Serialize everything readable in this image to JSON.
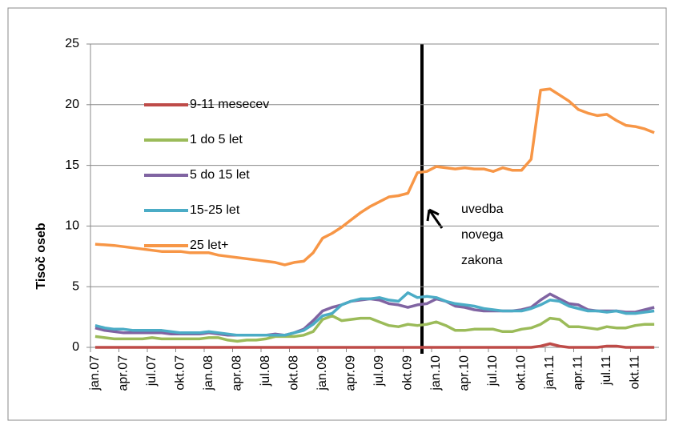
{
  "chart_data": {
    "type": "line",
    "y_label": "Tisoč oseb",
    "categories": [
      "jan.07",
      null,
      null,
      "apr.07",
      null,
      null,
      "jul.07",
      null,
      null,
      "okt.07",
      null,
      null,
      "jan.08",
      null,
      null,
      "apr.08",
      null,
      null,
      "jul.08",
      null,
      null,
      "okt.08",
      null,
      null,
      "jan.09",
      null,
      null,
      "apr.09",
      null,
      null,
      "jul.09",
      null,
      null,
      "okt.09",
      null,
      null,
      "jan.10",
      null,
      null,
      "apr.10",
      null,
      null,
      "jul.10",
      null,
      null,
      "okt.10",
      null,
      null,
      "jan.11",
      null,
      null,
      "apr.11",
      null,
      null,
      "jul.11",
      null,
      null,
      "okt.11",
      null,
      null
    ],
    "series": [
      {
        "name": "9-11 mesecev",
        "color": "#be4b48",
        "values": [
          0,
          0,
          0,
          0,
          0,
          0,
          0,
          0,
          0,
          0,
          0,
          0,
          0,
          0,
          0,
          0,
          0,
          0,
          0,
          0,
          0,
          0,
          0,
          0,
          0,
          0,
          0,
          0,
          0,
          0,
          0,
          0,
          0,
          0,
          0,
          0,
          0,
          0,
          0,
          0,
          0,
          0,
          0,
          0,
          0,
          0,
          0,
          0.1,
          0.3,
          0.1,
          0,
          0,
          0,
          0,
          0.1,
          0.1,
          0,
          0,
          0,
          0
        ]
      },
      {
        "name": "1 do 5 let",
        "color": "#9bbb59",
        "values": [
          0.9,
          0.8,
          0.7,
          0.7,
          0.7,
          0.7,
          0.8,
          0.7,
          0.7,
          0.7,
          0.7,
          0.7,
          0.8,
          0.8,
          0.6,
          0.5,
          0.6,
          0.6,
          0.7,
          0.9,
          0.9,
          0.9,
          1.0,
          1.3,
          2.3,
          2.6,
          2.2,
          2.3,
          2.4,
          2.4,
          2.1,
          1.8,
          1.7,
          1.9,
          1.8,
          1.9,
          2.1,
          1.8,
          1.4,
          1.4,
          1.5,
          1.5,
          1.5,
          1.3,
          1.3,
          1.5,
          1.6,
          1.9,
          2.4,
          2.3,
          1.7,
          1.7,
          1.6,
          1.5,
          1.7,
          1.6,
          1.6,
          1.8,
          1.9,
          1.9
        ]
      },
      {
        "name": "5 do 15 let",
        "color": "#8064a2",
        "values": [
          1.6,
          1.4,
          1.3,
          1.2,
          1.2,
          1.2,
          1.2,
          1.2,
          1.1,
          1.1,
          1.1,
          1.1,
          1.2,
          1.1,
          1.0,
          1.0,
          1.0,
          1.0,
          1.0,
          1.1,
          1.0,
          1.2,
          1.5,
          2.2,
          3.0,
          3.3,
          3.5,
          3.8,
          3.9,
          4.0,
          3.9,
          3.6,
          3.5,
          3.3,
          3.5,
          3.6,
          4.0,
          3.8,
          3.4,
          3.3,
          3.1,
          3.0,
          3.0,
          3.0,
          3.0,
          3.1,
          3.3,
          3.9,
          4.4,
          4.0,
          3.6,
          3.5,
          3.1,
          3.0,
          3.0,
          3.0,
          2.9,
          2.9,
          3.1,
          3.3
        ]
      },
      {
        "name": "15-25 let",
        "color": "#4bacc6",
        "values": [
          1.8,
          1.6,
          1.5,
          1.5,
          1.4,
          1.4,
          1.4,
          1.4,
          1.3,
          1.2,
          1.2,
          1.2,
          1.3,
          1.2,
          1.1,
          1.0,
          1.0,
          1.0,
          1.0,
          1.0,
          1.0,
          1.2,
          1.4,
          1.9,
          2.6,
          2.8,
          3.5,
          3.8,
          4.0,
          4.0,
          4.1,
          3.9,
          3.8,
          4.5,
          4.1,
          4.2,
          4.1,
          3.8,
          3.6,
          3.5,
          3.4,
          3.2,
          3.1,
          3.0,
          3.0,
          3.0,
          3.2,
          3.5,
          3.9,
          3.8,
          3.4,
          3.2,
          3.0,
          3.0,
          2.9,
          3.0,
          2.8,
          2.8,
          2.9,
          3.0
        ]
      },
      {
        "name": "25 let+",
        "color": "#f79646",
        "values": [
          8.5,
          8.45,
          8.4,
          8.3,
          8.2,
          8.1,
          8.0,
          7.9,
          7.9,
          7.9,
          7.8,
          7.8,
          7.8,
          7.6,
          7.5,
          7.4,
          7.3,
          7.2,
          7.1,
          7.0,
          6.8,
          7.0,
          7.1,
          7.8,
          9.0,
          9.4,
          9.9,
          10.5,
          11.1,
          11.6,
          12.0,
          12.4,
          12.5,
          12.7,
          14.4,
          14.5,
          14.9,
          14.8,
          14.7,
          14.8,
          14.7,
          14.7,
          14.5,
          14.8,
          14.6,
          14.6,
          15.5,
          21.2,
          21.3,
          20.8,
          20.3,
          19.6,
          19.3,
          19.1,
          19.2,
          18.7,
          18.3,
          18.2,
          18.0,
          17.7
        ]
      }
    ],
    "ylim": [
      0,
      25
    ],
    "yticks": [
      0,
      5,
      10,
      15,
      20,
      25
    ],
    "grid": true,
    "legend": "left",
    "annotation": [
      "uvedba",
      "novega",
      "zakona"
    ]
  }
}
